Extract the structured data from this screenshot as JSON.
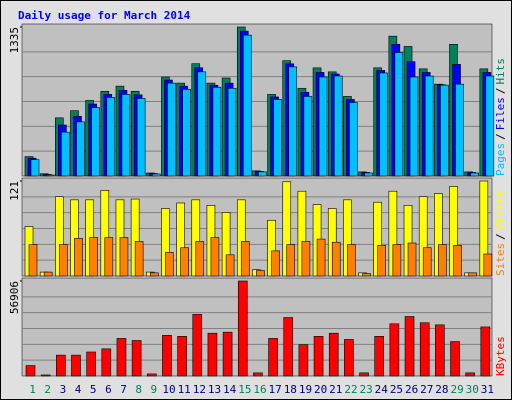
{
  "title": "Daily usage for March 2014",
  "days": [
    "1",
    "2",
    "3",
    "4",
    "5",
    "6",
    "7",
    "8",
    "9",
    "10",
    "11",
    "12",
    "13",
    "14",
    "15",
    "16",
    "17",
    "18",
    "19",
    "20",
    "21",
    "22",
    "23",
    "24",
    "25",
    "26",
    "27",
    "28",
    "29",
    "30",
    "31"
  ],
  "day_colors": [
    "#00805c",
    "#00805c",
    "#000080",
    "#000080",
    "#000080",
    "#000080",
    "#000080",
    "#00805c",
    "#00805c",
    "#000080",
    "#000080",
    "#000080",
    "#000080",
    "#000080",
    "#00805c",
    "#00805c",
    "#000080",
    "#000080",
    "#000080",
    "#000080",
    "#000080",
    "#00805c",
    "#00805c",
    "#000080",
    "#000080",
    "#000080",
    "#000080",
    "#000080",
    "#00805c",
    "#00805c",
    "#000080"
  ],
  "chart_data": [
    {
      "type": "bar",
      "ylim": [
        0,
        1335
      ],
      "yticks": [
        1335
      ],
      "legend_separator": "/",
      "series": [
        {
          "name": "Hits",
          "color": "#00805c",
          "values": [
            174,
            20,
            521,
            585,
            677,
            759,
            805,
            759,
            27,
            887,
            832,
            1006,
            832,
            878,
            1335,
            46,
            731,
            1033,
            786,
            969,
            933,
            713,
            37,
            969,
            1253,
            1161,
            960,
            823,
            1180,
            37,
            960
          ]
        },
        {
          "name": "Files",
          "color": "#0000ff",
          "values": [
            160,
            14,
            457,
            535,
            645,
            731,
            768,
            727,
            22,
            860,
            805,
            970,
            813,
            832,
            1298,
            41,
            708,
            1005,
            750,
            928,
            914,
            686,
            32,
            946,
            1180,
            1024,
            928,
            818,
            1000,
            32,
            928
          ]
        },
        {
          "name": "Pages",
          "color": "#00c0ff",
          "values": [
            146,
            9,
            393,
            485,
            613,
            704,
            731,
            695,
            18,
            832,
            777,
            933,
            795,
            786,
            1262,
            37,
            686,
            978,
            713,
            887,
            896,
            658,
            27,
            923,
            1106,
            887,
            896,
            814,
            823,
            27,
            896
          ]
        }
      ]
    },
    {
      "type": "bar",
      "ylim": [
        0,
        121
      ],
      "yticks": [
        121
      ],
      "legend_separator": "/",
      "series": [
        {
          "name": "Visits",
          "color": "#ffff00",
          "values": [
            63,
            5,
            101,
            97,
            97,
            109,
            97,
            98,
            5,
            86,
            93,
            97,
            90,
            81,
            97,
            8,
            71,
            120,
            108,
            91,
            86,
            97,
            4,
            94,
            108,
            90,
            101,
            105,
            114,
            4,
            121
          ]
        },
        {
          "name": "Sites",
          "color": "#ff8000",
          "values": [
            40,
            5,
            40,
            48,
            49,
            49,
            49,
            44,
            4,
            30,
            36,
            44,
            49,
            27,
            44,
            7,
            32,
            40,
            44,
            47,
            43,
            40,
            3,
            39,
            40,
            42,
            36,
            40,
            39,
            4,
            28
          ]
        }
      ]
    },
    {
      "type": "bar",
      "ylim": [
        0,
        56906
      ],
      "yticks": [
        56906
      ],
      "series": [
        {
          "name": "KBytes",
          "color": "#ff0000",
          "values": [
            6254,
            625,
            12500,
            12500,
            14380,
            16260,
            22500,
            21260,
            1250,
            24390,
            23760,
            36890,
            25640,
            26260,
            56906,
            1876,
            22510,
            35020,
            18760,
            23760,
            25640,
            21890,
            1876,
            23760,
            31270,
            35640,
            31890,
            30640,
            20640,
            1876,
            29390
          ]
        }
      ]
    }
  ]
}
